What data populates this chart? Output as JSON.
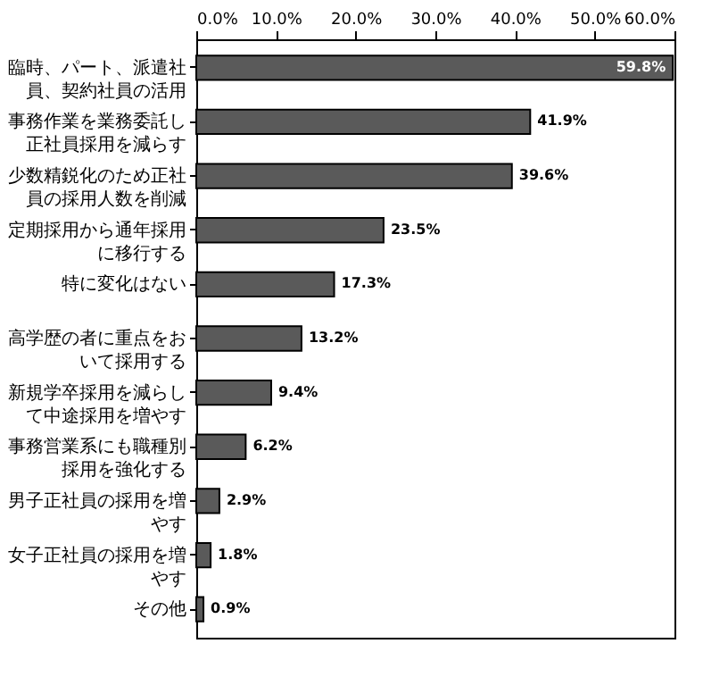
{
  "chart_data": {
    "type": "bar",
    "orientation": "horizontal",
    "categories": [
      "臨時、パート、派遣社員、契約社員の活用",
      "事務作業を業務委託し正社員採用を減らす",
      "少数精鋭化のため正社員の採用人数を削減",
      "定期採用から通年採用に移行する",
      "特に変化はない",
      "高学歴の者に重点をおいて採用する",
      "新規学卒採用を減らして中途採用を増やす",
      "事務営業系にも職種別採用を強化する",
      "男子正社員の採用を増やす",
      "女子正社員の採用を増やす",
      "その他"
    ],
    "values": [
      59.8,
      41.9,
      39.6,
      23.5,
      17.3,
      13.2,
      9.4,
      6.2,
      2.9,
      1.8,
      0.9
    ],
    "value_labels": [
      "59.8%",
      "41.9%",
      "39.6%",
      "23.5%",
      "17.3%",
      "13.2%",
      "9.4%",
      "6.2%",
      "2.9%",
      "1.8%",
      "0.9%"
    ],
    "color": "#5a5a5a",
    "xlim": [
      0,
      60
    ],
    "xticks": [
      {
        "value": 0,
        "label": "0.0%"
      },
      {
        "value": 10,
        "label": "10.0%"
      },
      {
        "value": 20,
        "label": "20.0%"
      },
      {
        "value": 30,
        "label": "30.0%"
      },
      {
        "value": 40,
        "label": "40.0%"
      },
      {
        "value": 50,
        "label": "50.0%"
      },
      {
        "value": 60,
        "label": "60.0%"
      }
    ],
    "grid": false
  }
}
